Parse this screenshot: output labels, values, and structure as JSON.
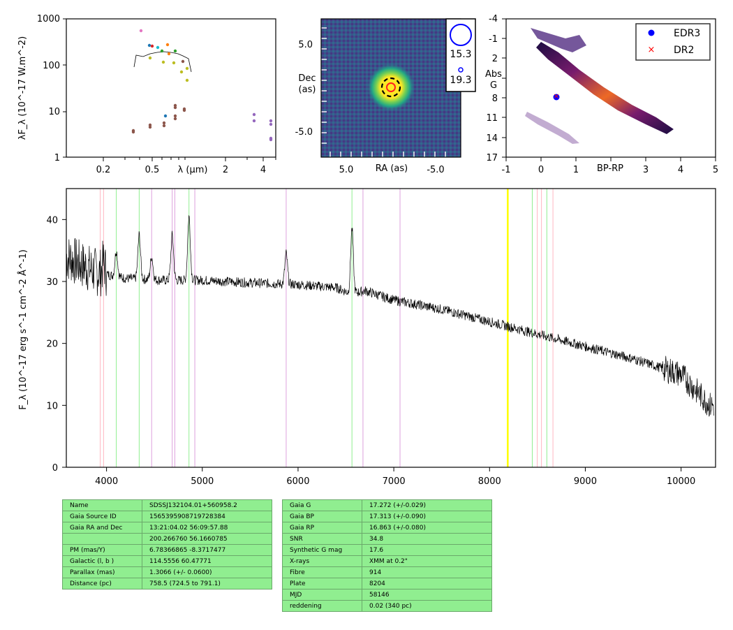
{
  "sed": {
    "ylabel": "λF_λ (10^-17 W.m^-2)",
    "xlabel": "λ (μm)",
    "xticks": [
      "0.2",
      "0.5",
      "2",
      "4"
    ],
    "yticks": [
      "1",
      "10",
      "100",
      "1000"
    ]
  },
  "image_panel": {
    "ylabel_line1": "Dec",
    "ylabel_line2": "(as)",
    "xlabel": "RA (as)",
    "xticks": [
      "5.0",
      "-5.0"
    ],
    "yticks": [
      "5.0",
      "-5.0"
    ],
    "legend": [
      "15.3",
      "19.3"
    ]
  },
  "cmd": {
    "ylabel_line1": "Abs",
    "ylabel_line2": "G",
    "xlabel": "BP-RP",
    "xticks": [
      "-1",
      "0",
      "1",
      "3",
      "4",
      "5"
    ],
    "yticks": [
      "-4",
      "-1",
      "2",
      "5",
      "8",
      "11",
      "14",
      "17"
    ],
    "legend": [
      "EDR3",
      "DR2"
    ]
  },
  "chart_data": {
    "type": "line",
    "title": "",
    "xlabel": "",
    "ylabel": "F_λ (10^-17 erg s^-1 cm^-2 Å^-1)",
    "xlim": [
      3580,
      10360
    ],
    "ylim": [
      0,
      45
    ],
    "xticks": [
      4000,
      5000,
      6000,
      7000,
      8000,
      9000,
      10000
    ],
    "yticks": [
      0,
      10,
      20,
      30,
      40
    ],
    "emission_lines": [
      {
        "x": 3970,
        "y": 33
      },
      {
        "x": 4102,
        "y": 35
      },
      {
        "x": 4341,
        "y": 37.5
      },
      {
        "x": 4471,
        "y": 34
      },
      {
        "x": 4686,
        "y": 37.5
      },
      {
        "x": 4861,
        "y": 40.5
      },
      {
        "x": 5876,
        "y": 34.5
      },
      {
        "x": 6563,
        "y": 38.5
      }
    ],
    "continuum": [
      [
        3580,
        34
      ],
      [
        3700,
        33
      ],
      [
        3900,
        31.5
      ],
      [
        4200,
        30.5
      ],
      [
        4600,
        30.2
      ],
      [
        5000,
        30.2
      ],
      [
        5500,
        29.8
      ],
      [
        6000,
        29.5
      ],
      [
        6400,
        29
      ],
      [
        6560,
        28
      ],
      [
        6700,
        28.5
      ],
      [
        7000,
        27
      ],
      [
        7500,
        25.5
      ],
      [
        8000,
        23.5
      ],
      [
        8500,
        21.5
      ],
      [
        9000,
        19.5
      ],
      [
        9500,
        17.5
      ],
      [
        10000,
        15
      ],
      [
        10300,
        10
      ]
    ],
    "vlines": [
      {
        "x": 3934,
        "color": "#ffb6c1"
      },
      {
        "x": 3969,
        "color": "#ffb6c1"
      },
      {
        "x": 4102,
        "color": "#90ee90"
      },
      {
        "x": 4341,
        "color": "#90ee90"
      },
      {
        "x": 4471,
        "color": "#dda0dd"
      },
      {
        "x": 4686,
        "color": "#dda0dd"
      },
      {
        "x": 4713,
        "color": "#dda0dd"
      },
      {
        "x": 4861,
        "color": "#90ee90"
      },
      {
        "x": 4922,
        "color": "#dda0dd"
      },
      {
        "x": 5876,
        "color": "#dda0dd"
      },
      {
        "x": 6563,
        "color": "#90ee90"
      },
      {
        "x": 6678,
        "color": "#dda0dd"
      },
      {
        "x": 7065,
        "color": "#dda0dd"
      },
      {
        "x": 8190,
        "color": "#ffff00"
      },
      {
        "x": 8446,
        "color": "#90ee90"
      },
      {
        "x": 8498,
        "color": "#ffb6c1"
      },
      {
        "x": 8542,
        "color": "#ffb6c1"
      },
      {
        "x": 8598,
        "color": "#90ee90"
      },
      {
        "x": 8662,
        "color": "#ffb6c1"
      }
    ]
  },
  "table_left": [
    {
      "key": "Name",
      "value": "SDSSJ132104.01+560958.2"
    },
    {
      "key": "Gaia Source ID",
      "value": "1565395908719728384"
    },
    {
      "key": "Gaia RA and Dec",
      "value": "13:21:04.02    56:09:57.88"
    },
    {
      "key": "",
      "value": "200.266760    56.1660785"
    },
    {
      "key": "PM (mas/Y)",
      "value": "6.78366865    -8.3717477"
    },
    {
      "key": "Galactic (l, b )",
      "value": "114.5556    60.47771"
    },
    {
      "key": "Parallax (mas)",
      "value": "1.3066 (+/- 0.0600)"
    },
    {
      "key": "Distance (pc)",
      "value": "758.5 (724.5 to 791.1)"
    }
  ],
  "table_right": [
    {
      "key": "Gaia G",
      "value": "17.272 (+/-0.029)"
    },
    {
      "key": "Gaia BP",
      "value": "17.313 (+/-0.090)"
    },
    {
      "key": "Gaia RP",
      "value": "16.863 (+/-0.080)"
    },
    {
      "key": "SNR",
      "value": "34.8"
    },
    {
      "key": "Synthetic G mag",
      "value": "17.6"
    },
    {
      "key": "X-rays",
      "value": "XMM at 0.2\""
    },
    {
      "key": "Fibre",
      "value": "914"
    },
    {
      "key": "Plate",
      "value": "8204"
    },
    {
      "key": "MJD",
      "value": "58146"
    },
    {
      "key": "reddening",
      "value": "0.02 (340 pc)"
    }
  ]
}
